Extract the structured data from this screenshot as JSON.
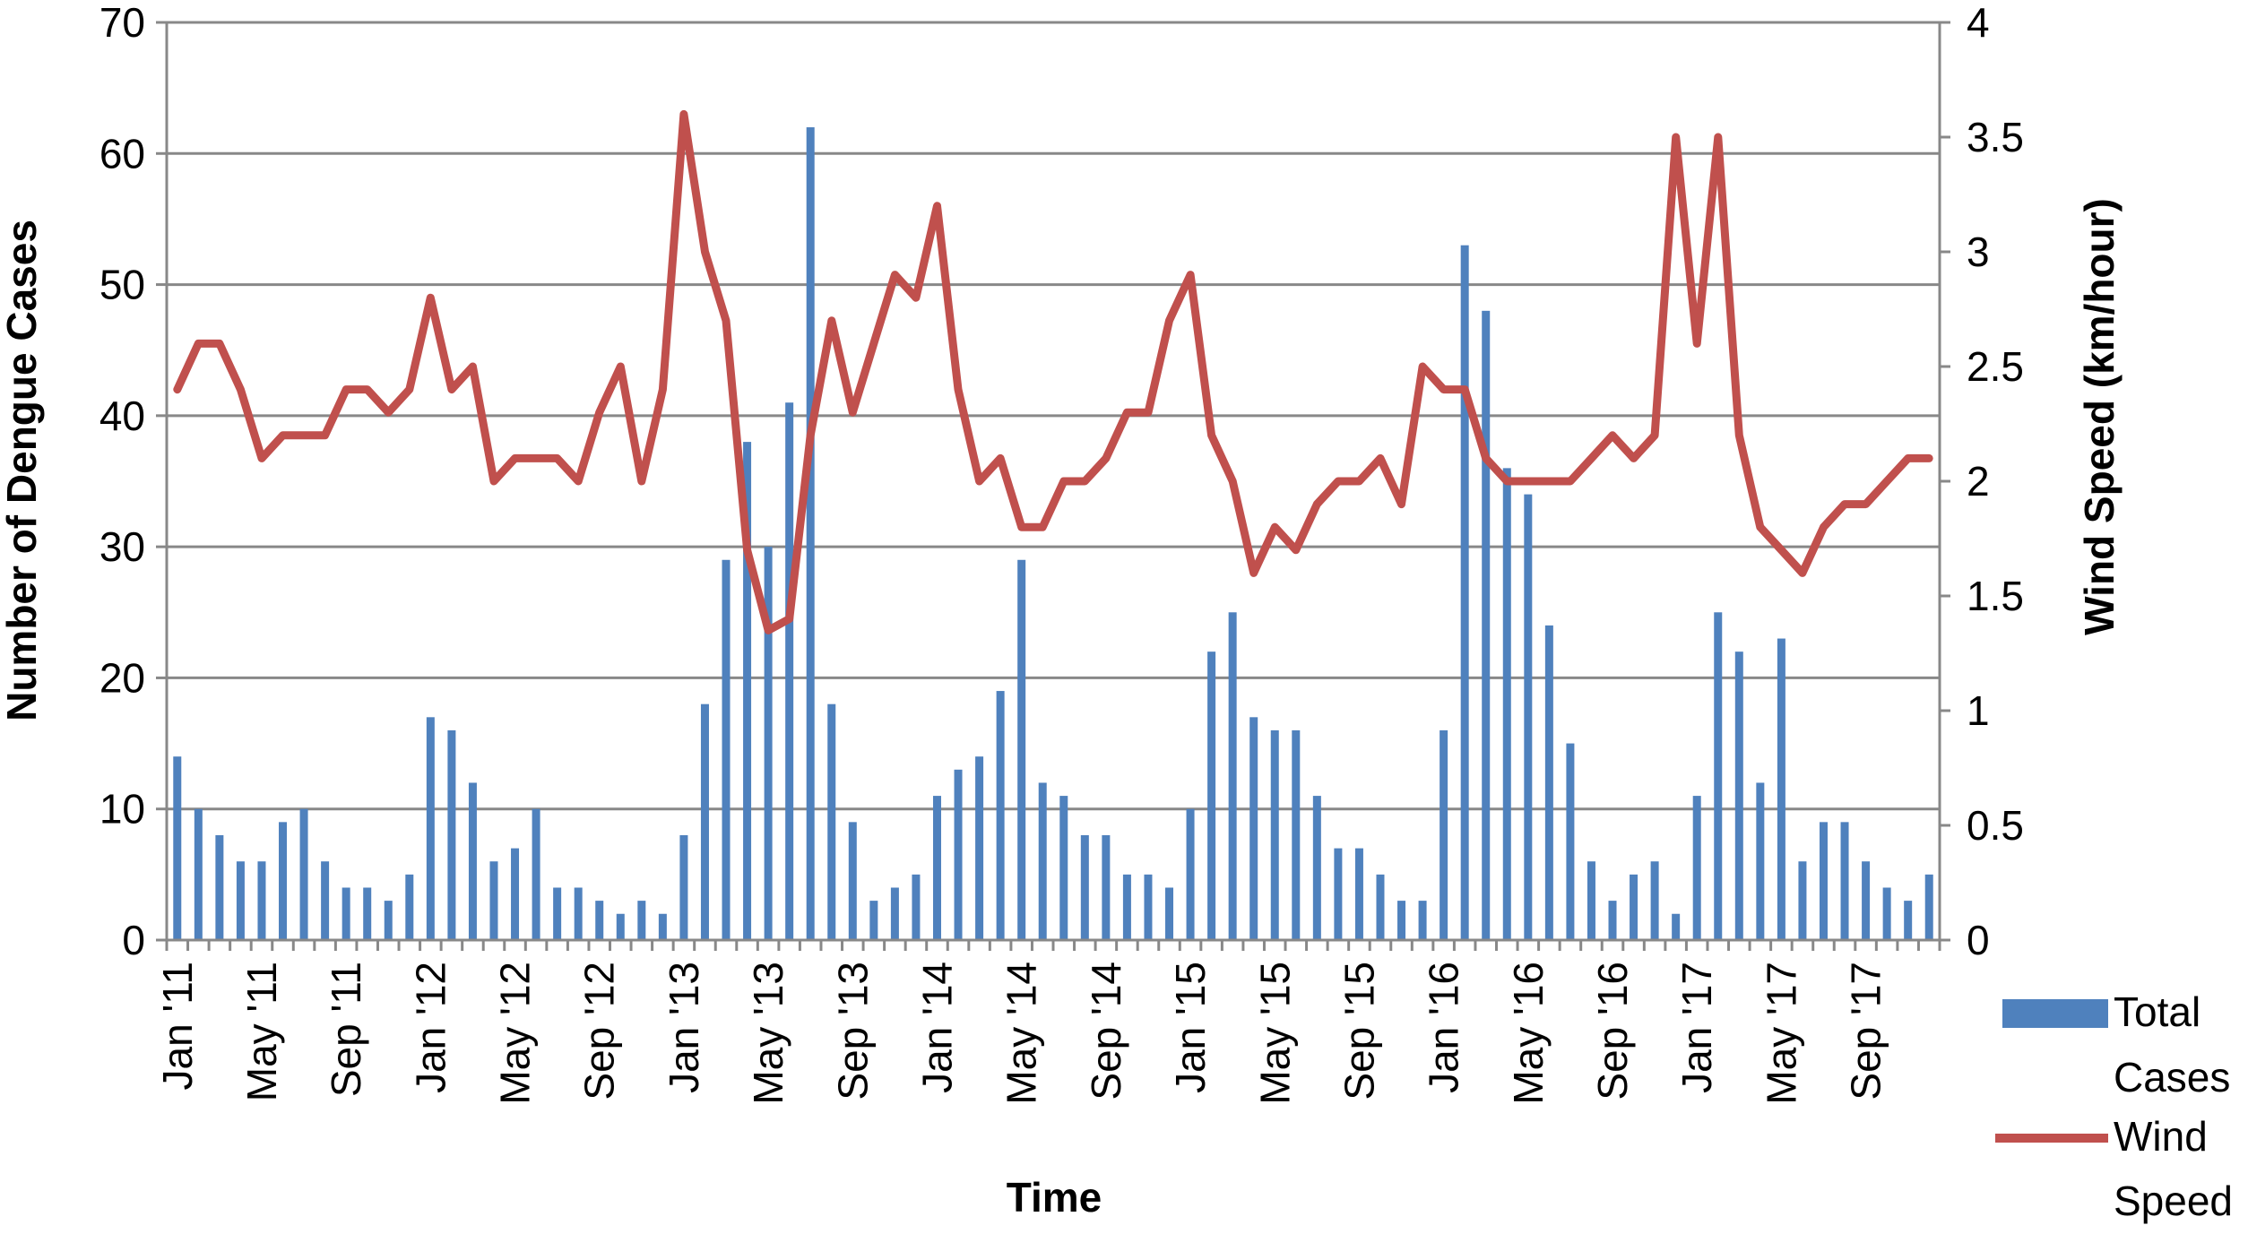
{
  "chart_data": {
    "type": "bar",
    "title": "",
    "xlabel": "Time",
    "ylabel": "Number of Dengue Cases",
    "y2label": "Wind Speed (km/hour)",
    "ylim": [
      0,
      70
    ],
    "yticks": [
      0,
      10,
      20,
      30,
      40,
      50,
      60,
      70
    ],
    "y2lim": [
      0,
      4
    ],
    "y2ticks": [
      "0",
      "0.5",
      "1",
      "1.5",
      "2",
      "2.5",
      "3",
      "3.5",
      "4"
    ],
    "grid": true,
    "legend_position": "bottom-right",
    "x": [
      "Jan '11",
      "Feb '11",
      "Mar '11",
      "Apr '11",
      "May '11",
      "Jun '11",
      "Jul '11",
      "Aug '11",
      "Sep '11",
      "Oct '11",
      "Nov '11",
      "Dec '11",
      "Jan '12",
      "Feb '12",
      "Mar '12",
      "Apr '12",
      "May '12",
      "Jun '12",
      "Jul '12",
      "Aug '12",
      "Sep '12",
      "Oct '12",
      "Nov '12",
      "Dec '12",
      "Jan '13",
      "Feb '13",
      "Mar '13",
      "Apr '13",
      "May '13",
      "Jun '13",
      "Jul '13",
      "Aug '13",
      "Sep '13",
      "Oct '13",
      "Nov '13",
      "Dec '13",
      "Jan '14",
      "Feb '14",
      "Mar '14",
      "Apr '14",
      "May '14",
      "Jun '14",
      "Jul '14",
      "Aug '14",
      "Sep '14",
      "Oct '14",
      "Nov '14",
      "Dec '14",
      "Jan '15",
      "Feb '15",
      "Mar '15",
      "Apr '15",
      "May '15",
      "Jun '15",
      "Jul '15",
      "Aug '15",
      "Sep '15",
      "Oct '15",
      "Nov '15",
      "Dec '15",
      "Jan '16",
      "Feb '16",
      "Mar '16",
      "Apr '16",
      "May '16",
      "Jun '16",
      "Jul '16",
      "Aug '16",
      "Sep '16",
      "Oct '16",
      "Nov '16",
      "Dec '16",
      "Jan '17",
      "Feb '17",
      "Mar '17",
      "Apr '17",
      "May '17",
      "Jun '17",
      "Jul '17",
      "Aug '17",
      "Sep '17",
      "Oct '17",
      "Nov '17",
      "Dec '17"
    ],
    "xtick_labels": [
      {
        "index": 0,
        "label": "Jan '11"
      },
      {
        "index": 4,
        "label": "May '11"
      },
      {
        "index": 8,
        "label": "Sep '11"
      },
      {
        "index": 12,
        "label": "Jan '12"
      },
      {
        "index": 16,
        "label": "May '12"
      },
      {
        "index": 20,
        "label": "Sep '12"
      },
      {
        "index": 24,
        "label": "Jan '13"
      },
      {
        "index": 28,
        "label": "May '13"
      },
      {
        "index": 32,
        "label": "Sep '13"
      },
      {
        "index": 36,
        "label": "Jan '14"
      },
      {
        "index": 40,
        "label": "May '14"
      },
      {
        "index": 44,
        "label": "Sep '14"
      },
      {
        "index": 48,
        "label": "Jan '15"
      },
      {
        "index": 52,
        "label": "May '15"
      },
      {
        "index": 56,
        "label": "Sep '15"
      },
      {
        "index": 60,
        "label": "Jan '16"
      },
      {
        "index": 64,
        "label": "May '16"
      },
      {
        "index": 68,
        "label": "Sep '16"
      },
      {
        "index": 72,
        "label": "Jan '17"
      },
      {
        "index": 76,
        "label": "May '17"
      },
      {
        "index": 80,
        "label": "Sep '17"
      }
    ],
    "series": [
      {
        "name": "Total Cases",
        "type": "bar",
        "axis": "left",
        "color": "#4F81BD",
        "values": [
          14,
          10,
          8,
          6,
          6,
          9,
          10,
          6,
          4,
          4,
          3,
          5,
          17,
          16,
          12,
          6,
          7,
          10,
          4,
          4,
          3,
          2,
          3,
          2,
          8,
          18,
          29,
          38,
          30,
          41,
          62,
          18,
          9,
          3,
          4,
          5,
          11,
          13,
          14,
          19,
          29,
          12,
          11,
          8,
          8,
          5,
          5,
          4,
          10,
          22,
          25,
          17,
          16,
          16,
          11,
          7,
          7,
          5,
          3,
          3,
          16,
          53,
          48,
          36,
          34,
          24,
          15,
          6,
          3,
          5,
          6,
          2,
          11,
          25,
          22,
          12,
          23,
          6,
          9,
          9,
          6,
          4,
          3,
          5
        ]
      },
      {
        "name": "Wind Speed",
        "type": "line",
        "axis": "right",
        "color": "#C0504D",
        "values": [
          2.4,
          2.6,
          2.6,
          2.4,
          2.1,
          2.2,
          2.2,
          2.2,
          2.4,
          2.4,
          2.3,
          2.4,
          2.8,
          2.4,
          2.5,
          2.0,
          2.1,
          2.1,
          2.1,
          2.0,
          2.3,
          2.5,
          2.0,
          2.4,
          3.6,
          3.0,
          2.7,
          1.7,
          1.35,
          1.4,
          2.2,
          2.7,
          2.3,
          2.6,
          2.9,
          2.8,
          3.2,
          2.4,
          2.0,
          2.1,
          1.8,
          1.8,
          2.0,
          2.0,
          2.1,
          2.3,
          2.3,
          2.7,
          2.9,
          2.2,
          2.0,
          1.6,
          1.8,
          1.7,
          1.9,
          2.0,
          2.0,
          2.1,
          1.9,
          2.5,
          2.4,
          2.4,
          2.1,
          2.0,
          2.0,
          2.0,
          2.0,
          2.1,
          2.2,
          2.1,
          2.2,
          3.5,
          2.6,
          3.5,
          2.2,
          1.8,
          1.7,
          1.6,
          1.8,
          1.9,
          1.9,
          2.0,
          2.1,
          2.1
        ]
      }
    ]
  },
  "legend": {
    "items": [
      {
        "lines": [
          "Total",
          "Cases"
        ],
        "color": "#4F81BD",
        "kind": "bar"
      },
      {
        "lines": [
          "Wind",
          "Speed"
        ],
        "color": "#C0504D",
        "kind": "line"
      }
    ]
  }
}
